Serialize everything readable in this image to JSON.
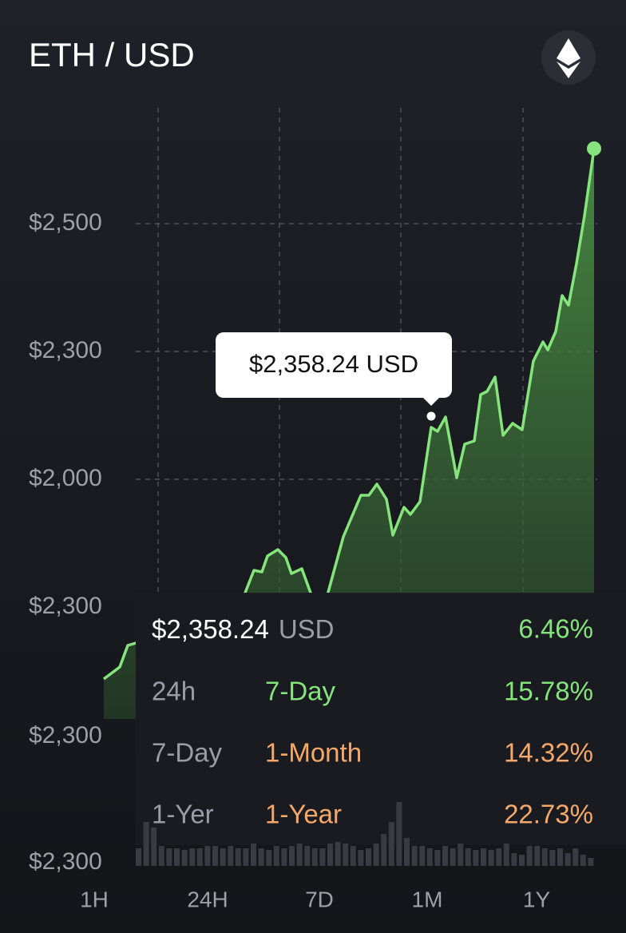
{
  "header": {
    "title": "ETH / USD"
  },
  "chart": {
    "y_labels": [
      "$2,500",
      "$2,300",
      "$2,000",
      "$2,300",
      "$2,300",
      "$2,300"
    ],
    "x_labels": [
      "1H",
      "24H",
      "7D",
      "1M",
      "1Y"
    ],
    "tooltip": "$2,358.24 USD"
  },
  "stats": {
    "price": "$2,358.24",
    "unit": "USD",
    "change": "6.46%",
    "rows": [
      {
        "period": "24h",
        "label": "7-Day",
        "change": "15.78%"
      },
      {
        "period": "7-Day",
        "label": "1-Month",
        "change": "14.32%"
      },
      {
        "period": "1-Yer",
        "label": "1-Year",
        "change": "22.73%"
      }
    ]
  }
}
